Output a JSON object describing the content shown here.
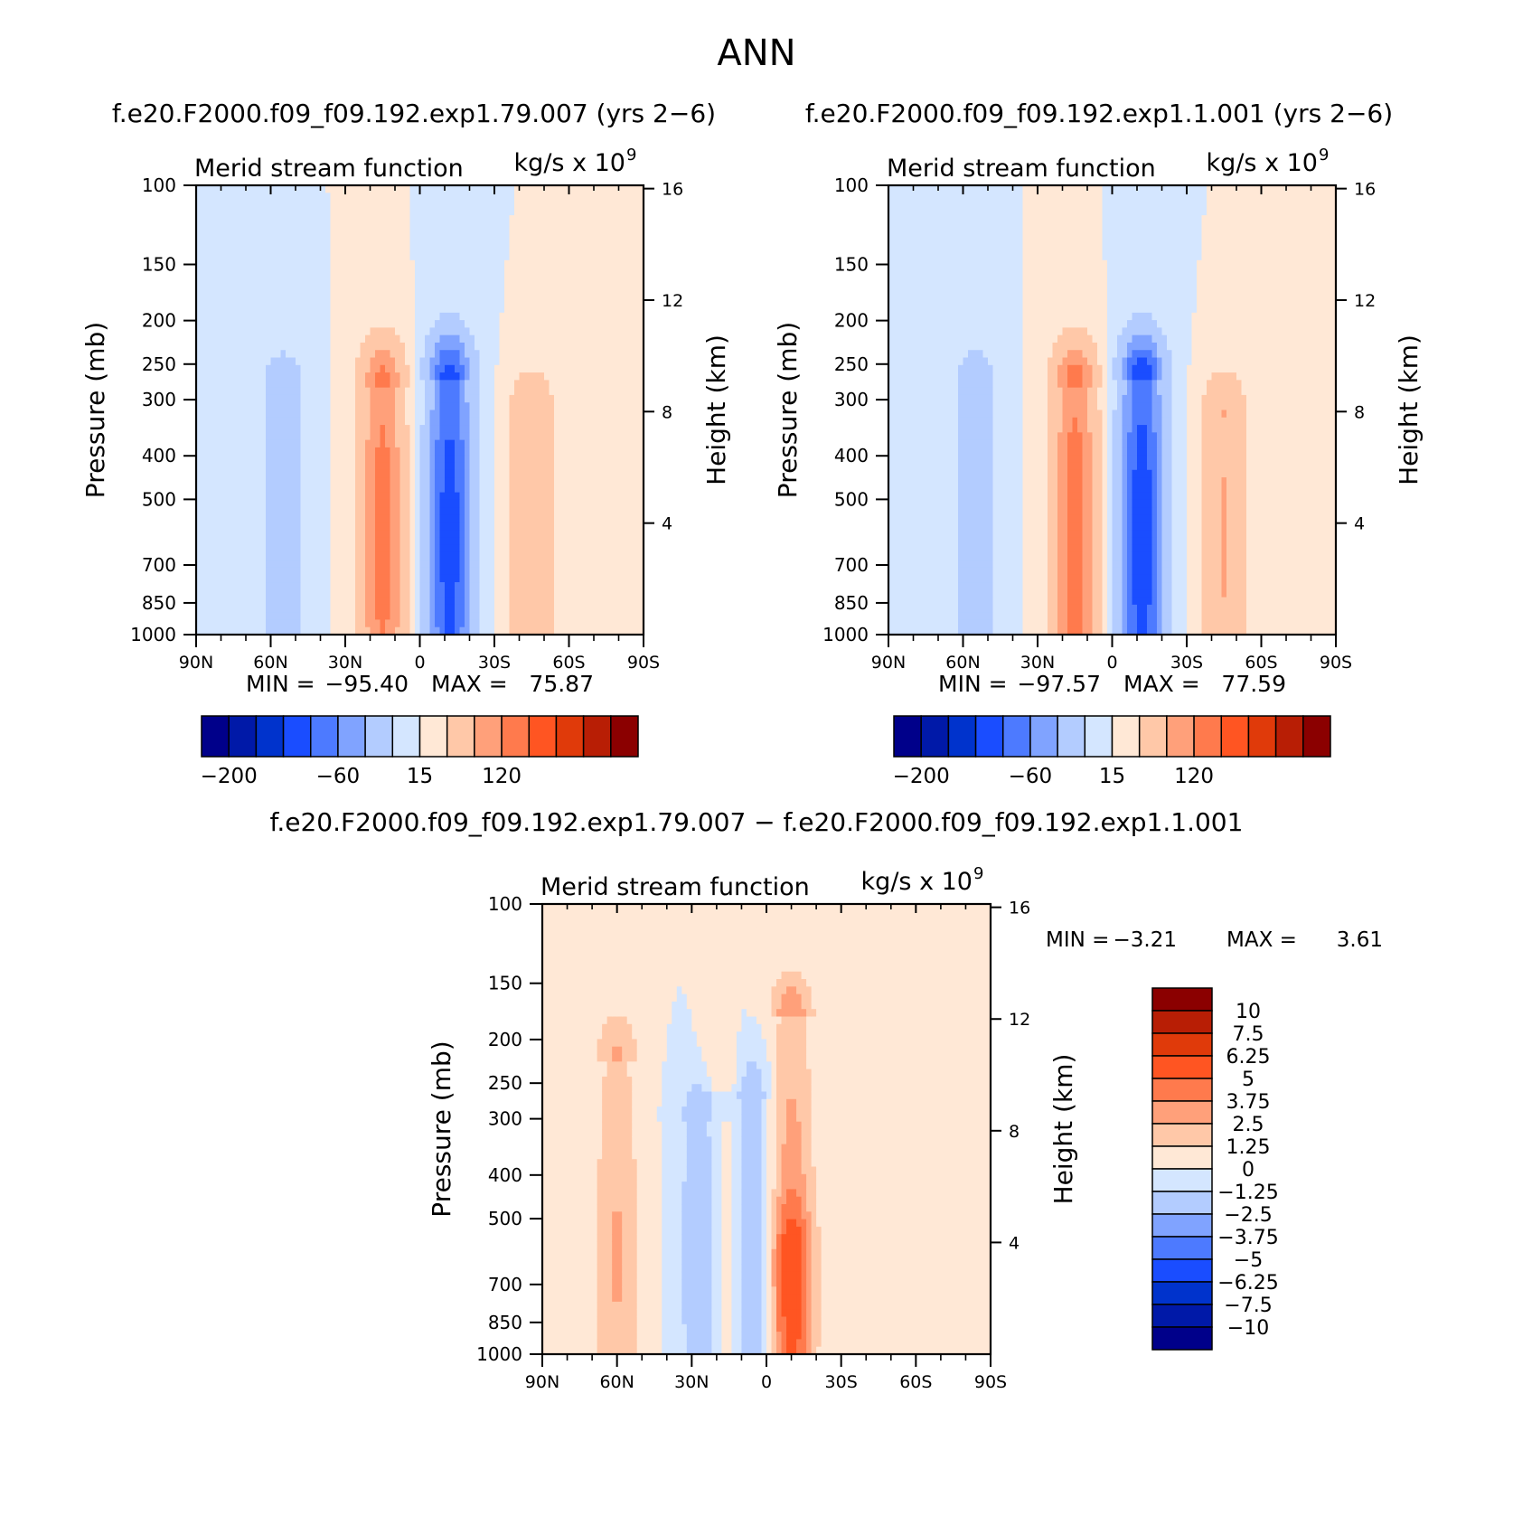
{
  "figure": {
    "title": "ANN",
    "diff_title": "f.e20.F2000.f09_f09.192.exp1.79.007 − f.e20.F2000.f09_f09.192.exp1.1.001"
  },
  "chart_data": [
    {
      "type": "contour",
      "case_label": "f.e20.F2000.f09_f09.192.exp1.79.007 (yrs 2−6)",
      "left_title": "Merid stream function",
      "units_base": "kg/s x 10",
      "units_exp": "9",
      "ylabel": "Pressure (mb)",
      "ylabel_right": "Height (km)",
      "pressure_ticks": [
        100,
        150,
        200,
        250,
        300,
        400,
        500,
        700,
        850,
        1000
      ],
      "height_ticks": [
        4,
        8,
        12,
        16
      ],
      "lat_ticks": [
        "90N",
        "60N",
        "30N",
        "0",
        "30S",
        "60S",
        "90S"
      ],
      "min_label": "MIN =",
      "min_value": "−95.40",
      "max_label": "MAX =",
      "max_value": "75.87",
      "colorbar_labels": [
        "−200",
        "−60",
        "15",
        "120"
      ],
      "features": [
        {
          "lat": -15,
          "p_top": 280,
          "sign": 1,
          "peak": 70
        },
        {
          "lat": 12,
          "p_top": 270,
          "sign": -1,
          "peak": 92
        },
        {
          "lat": 45,
          "p_top": 330,
          "sign": 1,
          "peak": 40
        },
        {
          "lat": -55,
          "p_top": 290,
          "sign": -1,
          "peak": 30
        }
      ]
    },
    {
      "type": "contour",
      "case_label": "f.e20.F2000.f09_f09.192.exp1.1.001 (yrs 2−6)",
      "left_title": "Merid stream function",
      "units_base": "kg/s x 10",
      "units_exp": "9",
      "ylabel": "Pressure (mb)",
      "ylabel_right": "Height (km)",
      "pressure_ticks": [
        100,
        150,
        200,
        250,
        300,
        400,
        500,
        700,
        850,
        1000
      ],
      "height_ticks": [
        4,
        8,
        12,
        16
      ],
      "lat_ticks": [
        "90N",
        "60N",
        "30N",
        "0",
        "30S",
        "60S",
        "90S"
      ],
      "min_label": "MIN =",
      "min_value": "−97.57",
      "max_label": "MAX =",
      "max_value": "77.59",
      "colorbar_labels": [
        "−200",
        "−60",
        "15",
        "120"
      ],
      "features": [
        {
          "lat": -15,
          "p_top": 280,
          "sign": 1,
          "peak": 72
        },
        {
          "lat": 12,
          "p_top": 270,
          "sign": -1,
          "peak": 95
        },
        {
          "lat": 45,
          "p_top": 330,
          "sign": 1,
          "peak": 42
        },
        {
          "lat": -55,
          "p_top": 290,
          "sign": -1,
          "peak": 32
        }
      ]
    },
    {
      "type": "contour",
      "left_title": "Merid stream function",
      "units_base": "kg/s x 10",
      "units_exp": "9",
      "ylabel": "Pressure (mb)",
      "ylabel_right": "Height (km)",
      "pressure_ticks": [
        100,
        150,
        200,
        250,
        300,
        400,
        500,
        700,
        850,
        1000
      ],
      "height_ticks": [
        4,
        8,
        12,
        16
      ],
      "lat_ticks": [
        "90N",
        "60N",
        "30N",
        "0",
        "30S",
        "60S",
        "90S"
      ],
      "min_label": "MIN =",
      "min_value": "−3.21",
      "max_label": "MAX =",
      "max_value": "3.61",
      "colorbar_labels": [
        "10",
        "7.5",
        "6.25",
        "5",
        "3.75",
        "2.5",
        "1.25",
        "0",
        "−1.25",
        "−2.5",
        "−3.75",
        "−5",
        "−6.25",
        "−7.5",
        "−10"
      ],
      "features": [
        {
          "lat": -60,
          "p_top": 220,
          "sign": 1,
          "peak": 2.6
        },
        {
          "lat": -25,
          "p_top": 300,
          "sign": -1,
          "peak": 3.2
        },
        {
          "lat": -17,
          "p_top": 260,
          "sign": 1,
          "peak": 2.6
        },
        {
          "lat": -7,
          "p_top": 270,
          "sign": -1,
          "peak": 3.0
        },
        {
          "lat": 10,
          "p_top": 180,
          "sign": 1,
          "peak": 3.6
        },
        {
          "lat": 10,
          "p_top": 600,
          "sign": 1,
          "peak": 2.6
        }
      ]
    }
  ],
  "colors": {
    "palette_16": [
      "#00008a",
      "#0019a8",
      "#0033cc",
      "#1a4dff",
      "#4d7aff",
      "#80a3ff",
      "#b3ccff",
      "#d4e6ff",
      "#ffe8d6",
      "#ffc8a8",
      "#ffa07a",
      "#ff7a4d",
      "#ff5522",
      "#e03a0a",
      "#b81e05",
      "#8b0000"
    ]
  }
}
